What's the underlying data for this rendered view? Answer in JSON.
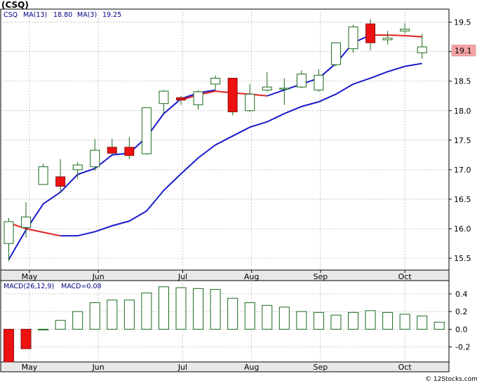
{
  "title": "(CSQ)",
  "chart_data": [
    {
      "type": "candlestick",
      "legend": {
        "ticker": "CSQ",
        "ma13_label": "MA(13)",
        "ma13_value": "18.80",
        "ma3_label": "MA(3)",
        "ma3_value": "19.25"
      },
      "last_price_label": "19.1",
      "ylim": [
        15.3,
        19.72
      ],
      "yticks": [
        15.5,
        16.0,
        16.5,
        17.0,
        17.5,
        18.0,
        18.5,
        19.0,
        19.5
      ],
      "ytick_labels": [
        "15.5",
        "16.0",
        "16.5",
        "17.0",
        "17.5",
        "18.0",
        "18.5",
        "19.0",
        "19.5"
      ],
      "months": [
        "May",
        "Jun",
        "Jul",
        "Aug",
        "Sep",
        "Oct"
      ],
      "month_positions": [
        1.2,
        5.2,
        10.1,
        14.1,
        18.1,
        23.0
      ],
      "candles": [
        {
          "x": 0,
          "o": 15.75,
          "c": 16.12,
          "h": 16.18,
          "l": 15.45
        },
        {
          "x": 1,
          "o": 16.02,
          "c": 16.2,
          "h": 16.45,
          "l": 15.85
        },
        {
          "x": 2,
          "o": 16.75,
          "c": 17.05,
          "h": 17.1,
          "l": 16.75
        },
        {
          "x": 3,
          "o": 16.88,
          "c": 16.72,
          "h": 17.18,
          "l": 16.6
        },
        {
          "x": 4,
          "o": 17.0,
          "c": 17.08,
          "h": 17.13,
          "l": 16.85
        },
        {
          "x": 5,
          "o": 17.05,
          "c": 17.33,
          "h": 17.52,
          "l": 16.98
        },
        {
          "x": 6,
          "o": 17.38,
          "c": 17.28,
          "h": 17.52,
          "l": 17.25
        },
        {
          "x": 7,
          "o": 17.38,
          "c": 17.24,
          "h": 17.55,
          "l": 17.18
        },
        {
          "x": 8,
          "o": 17.27,
          "c": 18.05,
          "h": 18.05,
          "l": 17.25
        },
        {
          "x": 9,
          "o": 18.12,
          "c": 18.33,
          "h": 18.35,
          "l": 17.95
        },
        {
          "x": 10,
          "o": 18.22,
          "c": 18.18,
          "h": 18.25,
          "l": 18.1
        },
        {
          "x": 11,
          "o": 18.1,
          "c": 18.32,
          "h": 18.35,
          "l": 18.02
        },
        {
          "x": 12,
          "o": 18.45,
          "c": 18.55,
          "h": 18.6,
          "l": 18.35
        },
        {
          "x": 13,
          "o": 18.55,
          "c": 17.98,
          "h": 18.55,
          "l": 17.92
        },
        {
          "x": 14,
          "o": 18.0,
          "c": 18.28,
          "h": 18.45,
          "l": 17.98
        },
        {
          "x": 15,
          "o": 18.35,
          "c": 18.4,
          "h": 18.65,
          "l": 18.32
        },
        {
          "x": 16,
          "o": 18.38,
          "c": 18.38,
          "h": 18.55,
          "l": 18.1
        },
        {
          "x": 17,
          "o": 18.4,
          "c": 18.62,
          "h": 18.68,
          "l": 18.38
        },
        {
          "x": 18,
          "o": 18.35,
          "c": 18.6,
          "h": 18.7,
          "l": 18.32
        },
        {
          "x": 19,
          "o": 18.78,
          "c": 19.15,
          "h": 19.15,
          "l": 18.75
        },
        {
          "x": 20,
          "o": 19.05,
          "c": 19.42,
          "h": 19.45,
          "l": 18.98
        },
        {
          "x": 21,
          "o": 19.47,
          "c": 19.15,
          "h": 19.55,
          "l": 19.02
        },
        {
          "x": 22,
          "o": 19.2,
          "c": 19.23,
          "h": 19.35,
          "l": 19.12
        },
        {
          "x": 23,
          "o": 19.35,
          "c": 19.38,
          "h": 19.48,
          "l": 19.3
        },
        {
          "x": 24,
          "o": 18.98,
          "c": 19.08,
          "h": 19.3,
          "l": 18.88
        }
      ],
      "ma13": [
        15.48,
        15.98,
        16.42,
        16.62,
        16.92,
        17.02,
        17.25,
        17.28,
        17.55,
        17.95,
        18.2,
        18.3,
        18.35
      ],
      "ma13_x_start": 0,
      "ma13_long": [
        15.88,
        15.88,
        15.95,
        16.05,
        16.13,
        16.3,
        16.65,
        16.93,
        17.2,
        17.42,
        17.57,
        17.72,
        17.81,
        17.95,
        18.07,
        18.15,
        18.28,
        18.45,
        18.55,
        18.66,
        18.75,
        18.8
      ],
      "ma13_long_x_start": 3,
      "ma3_x": [
        0,
        1,
        3,
        4,
        10,
        11,
        12,
        13,
        14,
        15,
        16,
        17,
        18,
        19,
        20,
        21,
        22,
        23,
        24
      ],
      "ma3": [
        16.1,
        16.0,
        15.88,
        15.88,
        18.18,
        18.27,
        18.33,
        18.3,
        18.28,
        18.25,
        18.35,
        18.45,
        18.55,
        18.8,
        19.15,
        19.28,
        19.28,
        19.27,
        19.25
      ],
      "ma3_red_segments": [
        [
          0,
          3
        ],
        [
          10,
          15
        ],
        [
          21,
          24
        ]
      ]
    },
    {
      "type": "bar",
      "legend": {
        "label": "MACD(26,12,9)",
        "value_label": "MACD=0.08"
      },
      "ylim": [
        -0.37,
        0.55
      ],
      "yticks": [
        0.4,
        0.2,
        0.0,
        -0.2
      ],
      "ytick_labels": [
        "0.4",
        "0.2",
        "0.0",
        "-0.2"
      ],
      "months": [
        "May",
        "Jun",
        "Jul",
        "Aug",
        "Sep",
        "Oct"
      ],
      "values": [
        -0.43,
        -0.22,
        0.0,
        0.1,
        0.2,
        0.3,
        0.33,
        0.33,
        0.41,
        0.48,
        0.47,
        0.46,
        0.45,
        0.35,
        0.3,
        0.27,
        0.25,
        0.2,
        0.19,
        0.16,
        0.19,
        0.21,
        0.19,
        0.17,
        0.15,
        0.08
      ]
    }
  ],
  "credit": "© 12Stocks.com"
}
